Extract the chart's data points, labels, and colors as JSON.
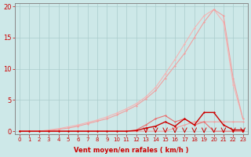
{
  "background_color": "#cde8e8",
  "grid_color": "#aacccc",
  "xlabel": "Vent moyen/en rafales ( km/h )",
  "xlim": [
    -0.5,
    23.5
  ],
  "ylim": [
    -0.5,
    20.5
  ],
  "yticks": [
    0,
    5,
    10,
    15,
    20
  ],
  "xticks": [
    0,
    1,
    2,
    3,
    4,
    5,
    6,
    7,
    8,
    9,
    10,
    11,
    12,
    13,
    14,
    15,
    16,
    17,
    18,
    19,
    20,
    21,
    22,
    23
  ],
  "series": [
    {
      "color": "#f0a0a0",
      "lw": 0.8,
      "x": [
        0,
        1,
        2,
        3,
        4,
        5,
        6,
        7,
        8,
        9,
        10,
        11,
        12,
        13,
        14,
        15,
        16,
        17,
        18,
        19,
        20,
        21,
        22,
        23
      ],
      "y": [
        0,
        0,
        0,
        0,
        0,
        0,
        0,
        0,
        0,
        0,
        0,
        0,
        0,
        0,
        0,
        0,
        0.5,
        1.0,
        1.5,
        1.5,
        1.5,
        1.5,
        1.5,
        1.5
      ]
    },
    {
      "color": "#f4b4b4",
      "lw": 0.8,
      "x": [
        0,
        1,
        2,
        3,
        4,
        5,
        6,
        7,
        8,
        9,
        10,
        11,
        12,
        13,
        14,
        15,
        16,
        17,
        18,
        19,
        20,
        21,
        22,
        23
      ],
      "y": [
        0,
        0,
        0,
        0.2,
        0.4,
        0.7,
        1.0,
        1.4,
        1.8,
        2.3,
        2.9,
        3.6,
        4.4,
        5.5,
        7.0,
        9.2,
        11.5,
        14.0,
        16.5,
        18.5,
        19.5,
        17.5,
        7.5,
        2.0
      ]
    },
    {
      "color": "#f0a0a0",
      "lw": 0.8,
      "x": [
        0,
        1,
        2,
        3,
        4,
        5,
        6,
        7,
        8,
        9,
        10,
        11,
        12,
        13,
        14,
        15,
        16,
        17,
        18,
        19,
        20,
        21,
        22,
        23
      ],
      "y": [
        0,
        0,
        0,
        0.1,
        0.3,
        0.5,
        0.8,
        1.2,
        1.6,
        2.0,
        2.6,
        3.3,
        4.1,
        5.2,
        6.5,
        8.5,
        10.5,
        12.5,
        15.0,
        17.5,
        19.5,
        18.5,
        8.5,
        2.0
      ]
    },
    {
      "color": "#e87070",
      "lw": 0.8,
      "x": [
        0,
        1,
        2,
        3,
        4,
        5,
        6,
        7,
        8,
        9,
        10,
        11,
        12,
        13,
        14,
        15,
        16,
        17,
        18,
        19,
        20,
        21,
        22,
        23
      ],
      "y": [
        0,
        0,
        0,
        0,
        0,
        0,
        0,
        0,
        0,
        0,
        0,
        0,
        0.2,
        1.0,
        2.0,
        2.5,
        1.5,
        2.0,
        1.0,
        1.5,
        0.0,
        0.0,
        0.0,
        0.0
      ]
    },
    {
      "color": "#cc0000",
      "lw": 1.0,
      "x": [
        0,
        1,
        2,
        3,
        4,
        5,
        6,
        7,
        8,
        9,
        10,
        11,
        12,
        13,
        14,
        15,
        16,
        17,
        18,
        19,
        20,
        21,
        22,
        23
      ],
      "y": [
        0,
        0,
        0,
        0,
        0,
        0,
        0,
        0,
        0,
        0,
        0,
        0,
        0.1,
        0.5,
        0.8,
        1.5,
        0.8,
        2.0,
        1.0,
        3.0,
        3.0,
        1.0,
        0.2,
        0.2
      ]
    }
  ],
  "arrows_x": [
    13,
    14,
    15,
    16,
    17,
    18,
    19,
    20,
    21,
    22,
    23
  ],
  "arrow_color": "#cc0000",
  "tick_color": "#cc0000",
  "xlabel_color": "#cc0000",
  "xlabel_fontsize": 6,
  "tick_fontsize_x": 5,
  "tick_fontsize_y": 6
}
